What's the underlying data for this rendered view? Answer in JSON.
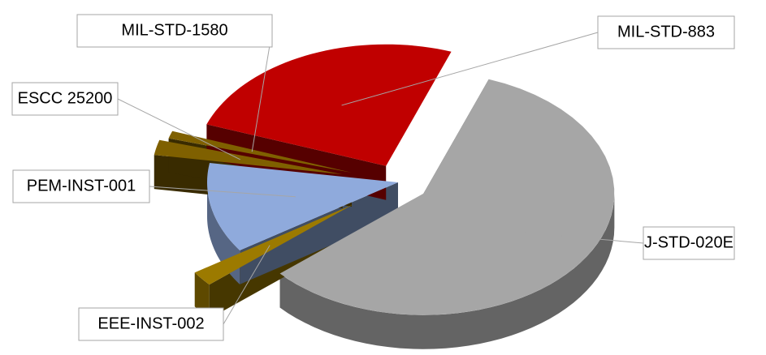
{
  "chart_data": {
    "type": "pie3d",
    "categories": [
      "J-STD-020E",
      "EEE-INST-002",
      "PEM-INST-001",
      "ESCC 25200",
      "MIL-STD-1580",
      "MIL-STD-883"
    ],
    "values": [
      58,
      2,
      12,
      2,
      1,
      25
    ],
    "colors": [
      "#a6a6a6",
      "#9c7a00",
      "#8faadc",
      "#7f6000",
      "#7f6000",
      "#c00000"
    ]
  }
}
